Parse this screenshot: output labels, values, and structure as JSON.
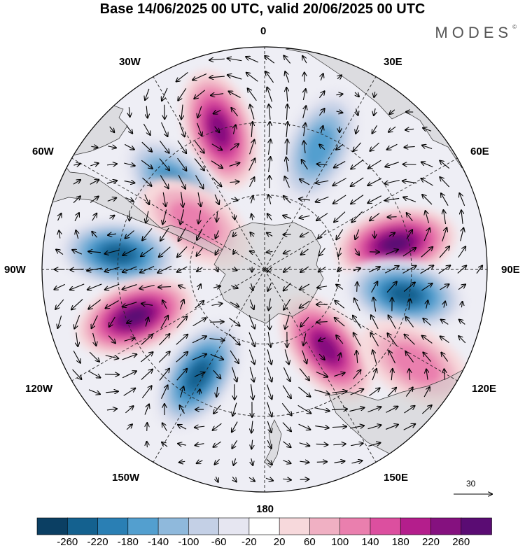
{
  "title": "Base 14/06/2025 00 UTC, valid 20/06/2025 00 UTC",
  "logo": "MODES",
  "logo_mark": "©",
  "longitude_labels": {
    "top": "0",
    "top_left": "30W",
    "top_right": "30E",
    "upper_left": "60W",
    "upper_right": "60E",
    "left": "90W",
    "right": "90E",
    "lower_left": "120W",
    "lower_right": "120E",
    "bottom_left": "150W",
    "bottom_right": "150E",
    "bottom": "180"
  },
  "vector_scale_label": "30",
  "colorbar": {
    "colors": [
      "#0b3f63",
      "#14618f",
      "#2a7fb4",
      "#539fcf",
      "#8fb9dc",
      "#c4d0e6",
      "#e6e6f1",
      "#ffffff",
      "#f7d9dc",
      "#f0b0c3",
      "#ea7fae",
      "#dc4f9f",
      "#b41e8c",
      "#85117f",
      "#5a0c73"
    ],
    "tick_labels": [
      "-260",
      "-220",
      "-180",
      "-140",
      "-100",
      "-60",
      "-20",
      "20",
      "60",
      "100",
      "140",
      "180",
      "220",
      "260"
    ]
  },
  "anomaly_centers": [
    {
      "sign": "positive",
      "level": 4,
      "lon": -18,
      "r": 0.66
    },
    {
      "sign": "negative",
      "level": 3,
      "lon": -47,
      "r": 0.55
    },
    {
      "sign": "positive",
      "level": 1,
      "lon": -56,
      "r": 0.38
    },
    {
      "sign": "negative",
      "level": 4,
      "lon": -84,
      "r": 0.66
    },
    {
      "sign": "positive",
      "level": 5,
      "lon": -110,
      "r": 0.62
    },
    {
      "sign": "negative",
      "level": 4,
      "lon": -148,
      "r": 0.56
    },
    {
      "sign": "negative",
      "level": 2,
      "lon": 24,
      "r": 0.6
    },
    {
      "sign": "positive",
      "level": 5,
      "lon": 79,
      "r": 0.6
    },
    {
      "sign": "negative",
      "level": 4,
      "lon": 100,
      "r": 0.64
    },
    {
      "sign": "positive",
      "level": 4,
      "lon": 142,
      "r": 0.45
    },
    {
      "sign": "positive",
      "level": 1,
      "lon": 122,
      "r": 0.8
    }
  ]
}
